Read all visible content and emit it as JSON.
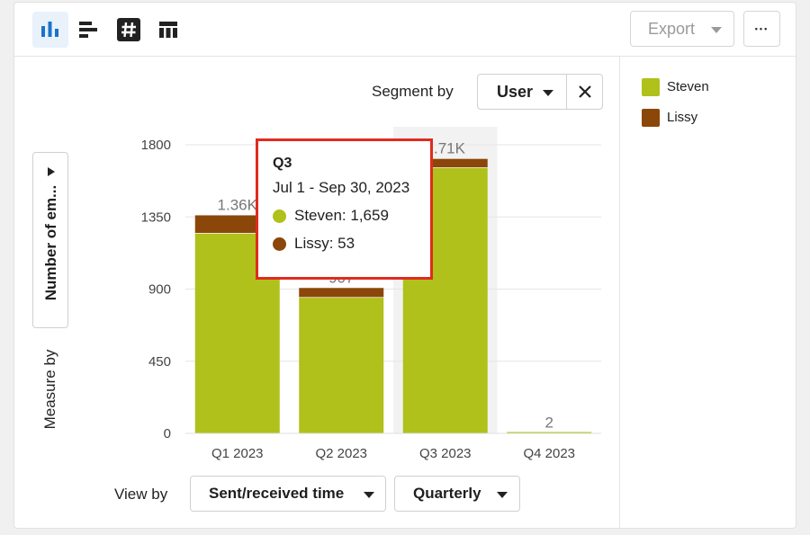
{
  "toolbar": {
    "icons": [
      "bar-chart-icon",
      "horizontal-bar-icon",
      "number-icon",
      "table-icon"
    ],
    "export_label": "Export",
    "more_label": "•••"
  },
  "segment": {
    "label": "Segment by",
    "value": "User"
  },
  "measure": {
    "value": "Number of em...",
    "label": "Measure by"
  },
  "view": {
    "label": "View by",
    "dimension": "Sent/received time",
    "granularity": "Quarterly"
  },
  "colors": {
    "steven": "#afc11a",
    "lissy": "#8b4709",
    "highlight": "#f2f2f2",
    "tooltip_border": "#e02b1e",
    "active_icon": "#1a73c9"
  },
  "tooltip": {
    "title": "Q3",
    "range": "Jul 1 - Sep 30, 2023",
    "rows": [
      {
        "label": "Steven: 1,659"
      },
      {
        "label": "Lissy: 53"
      }
    ]
  },
  "chart_data": {
    "type": "bar",
    "stacked": true,
    "categories": [
      "Q1 2023",
      "Q2 2023",
      "Q3 2023",
      "Q4 2023"
    ],
    "series": [
      {
        "name": "Steven",
        "values": [
          1250,
          850,
          1659,
          2
        ]
      },
      {
        "name": "Lissy",
        "values": [
          110,
          57,
          53,
          0
        ]
      }
    ],
    "totals_labels": [
      "1.36K",
      "907",
      "1.71K",
      "2"
    ],
    "yticks": [
      0,
      450,
      900,
      1350,
      1800
    ],
    "ylim": [
      0,
      1800
    ],
    "grid": true,
    "legend_position": "right",
    "highlighted_category": "Q3 2023"
  }
}
